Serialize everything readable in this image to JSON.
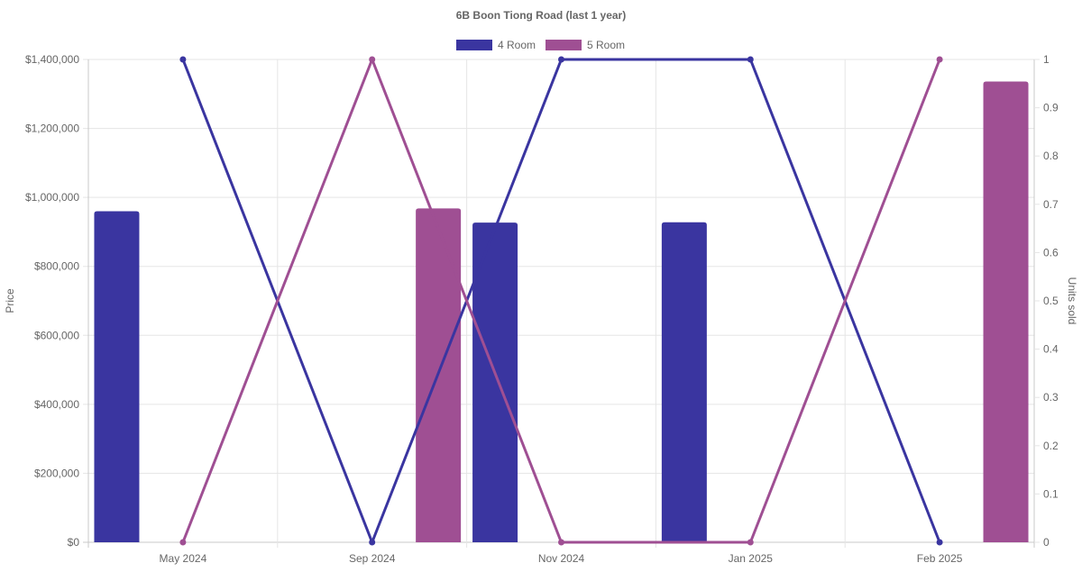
{
  "chart_data": {
    "type": "bar",
    "title": "6B Boon Tiong Road (last 1 year)",
    "categories": [
      "May 2024",
      "Sep 2024",
      "Nov 2024",
      "Jan 2025",
      "Feb 2025"
    ],
    "y_left": {
      "label": "Price",
      "min": 0,
      "max": 1400000,
      "step": 200000,
      "ticks": [
        "$0",
        "$200,000",
        "$400,000",
        "$600,000",
        "$800,000",
        "$1,000,000",
        "$1,200,000",
        "$1,400,000"
      ]
    },
    "y_right": {
      "label": "Units sold",
      "min": 0,
      "max": 1,
      "step": 0.1,
      "ticks": [
        "0",
        "0.1",
        "0.2",
        "0.3",
        "0.4",
        "0.5",
        "0.6",
        "0.7",
        "0.8",
        "0.9",
        "1"
      ]
    },
    "legend_position": "top-center",
    "grid": true,
    "series": [
      {
        "name": "4 Room",
        "color": "#3a35a0",
        "price": [
          960000,
          null,
          927000,
          928000,
          null
        ],
        "units_sold": [
          1,
          0,
          1,
          1,
          0
        ]
      },
      {
        "name": "5 Room",
        "color": "#9f4f93",
        "price": [
          null,
          968000,
          null,
          null,
          1336000
        ],
        "units_sold": [
          0,
          1,
          0,
          0,
          1
        ]
      }
    ]
  }
}
